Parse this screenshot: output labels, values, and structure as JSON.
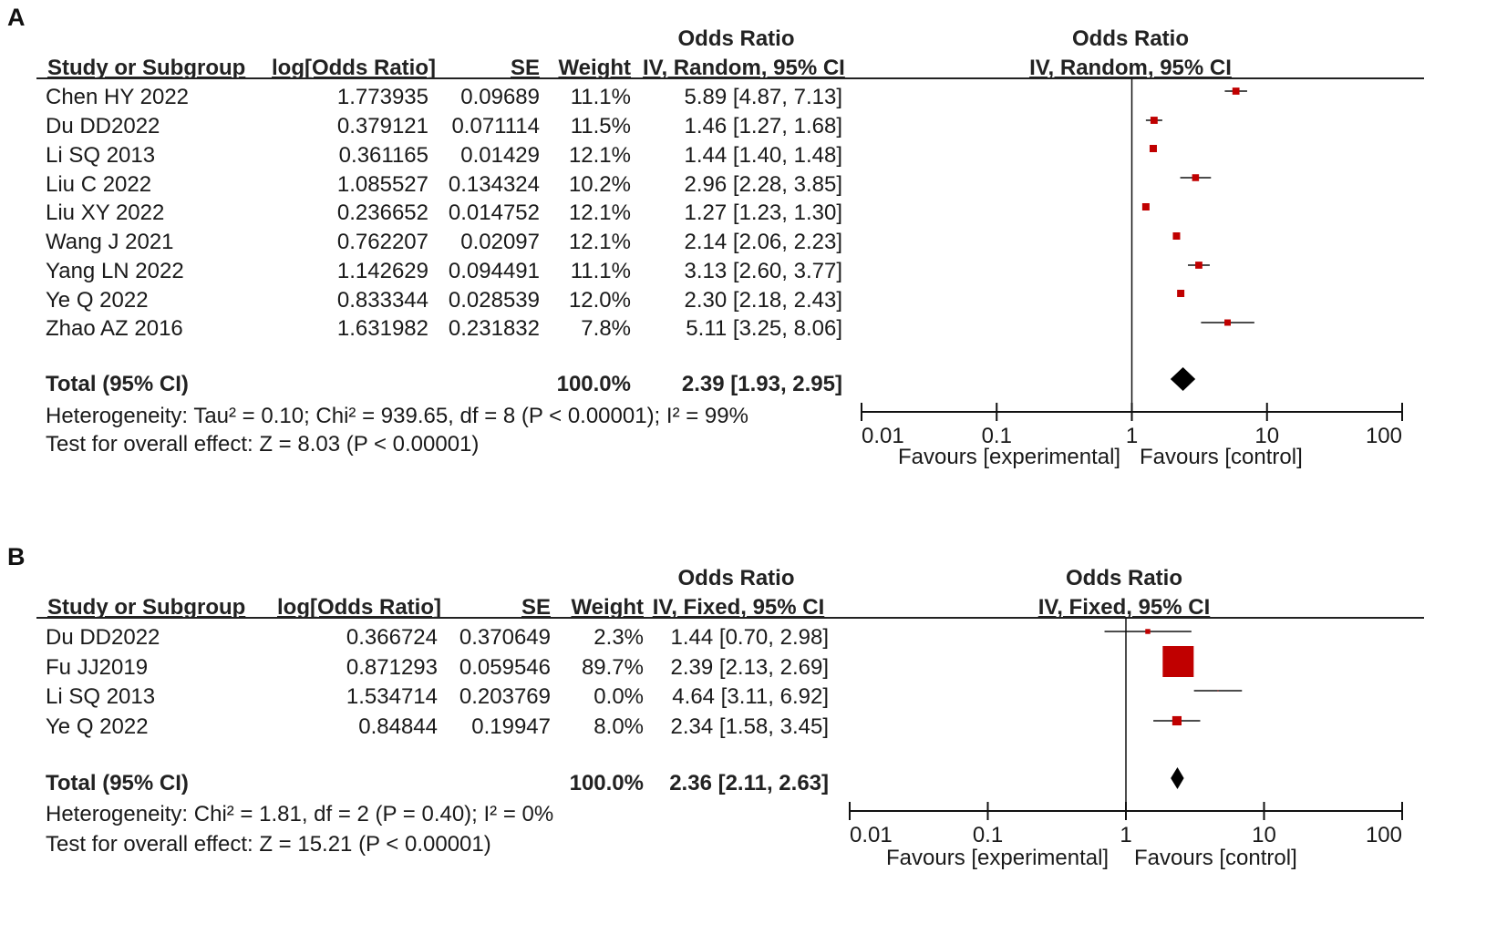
{
  "chart_data": [
    {
      "panel": "A",
      "type": "forest",
      "columns": {
        "study": "Study or Subgroup",
        "log_or": "log[Odds Ratio]",
        "se": "SE",
        "weight": "Weight",
        "or_title": "Odds Ratio",
        "or_method": "IV, Random, 95% CI"
      },
      "plot_title": "Odds Ratio",
      "plot_method": "IV, Random, 95% CI",
      "studies": [
        {
          "name": "Chen HY 2022",
          "log_or": "1.773935",
          "se": "0.09689",
          "weight": "11.1%",
          "ci_text": "5.89 [4.87, 7.13]",
          "or": 5.89,
          "lo": 4.87,
          "hi": 7.13,
          "w": 11.1
        },
        {
          "name": "Du DD2022",
          "log_or": "0.379121",
          "se": "0.071114",
          "weight": "11.5%",
          "ci_text": "1.46 [1.27, 1.68]",
          "or": 1.46,
          "lo": 1.27,
          "hi": 1.68,
          "w": 11.5
        },
        {
          "name": "Li SQ 2013",
          "log_or": "0.361165",
          "se": "0.01429",
          "weight": "12.1%",
          "ci_text": "1.44 [1.40, 1.48]",
          "or": 1.44,
          "lo": 1.4,
          "hi": 1.48,
          "w": 12.1
        },
        {
          "name": "Liu C 2022",
          "log_or": "1.085527",
          "se": "0.134324",
          "weight": "10.2%",
          "ci_text": "2.96 [2.28, 3.85]",
          "or": 2.96,
          "lo": 2.28,
          "hi": 3.85,
          "w": 10.2
        },
        {
          "name": "Liu XY 2022",
          "log_or": "0.236652",
          "se": "0.014752",
          "weight": "12.1%",
          "ci_text": "1.27 [1.23, 1.30]",
          "or": 1.27,
          "lo": 1.23,
          "hi": 1.3,
          "w": 12.1
        },
        {
          "name": "Wang J 2021",
          "log_or": "0.762207",
          "se": "0.02097",
          "weight": "12.1%",
          "ci_text": "2.14 [2.06, 2.23]",
          "or": 2.14,
          "lo": 2.06,
          "hi": 2.23,
          "w": 12.1
        },
        {
          "name": "Yang LN 2022",
          "log_or": "1.142629",
          "se": "0.094491",
          "weight": "11.1%",
          "ci_text": "3.13 [2.60, 3.77]",
          "or": 3.13,
          "lo": 2.6,
          "hi": 3.77,
          "w": 11.1
        },
        {
          "name": "Ye Q 2022",
          "log_or": "0.833344",
          "se": "0.028539",
          "weight": "12.0%",
          "ci_text": "2.30 [2.18, 2.43]",
          "or": 2.3,
          "lo": 2.18,
          "hi": 2.43,
          "w": 12.0
        },
        {
          "name": "Zhao AZ 2016",
          "log_or": "1.631982",
          "se": "0.231832",
          "weight": "7.8%",
          "ci_text": "5.11 [3.25, 8.06]",
          "or": 5.11,
          "lo": 3.25,
          "hi": 8.06,
          "w": 7.8
        }
      ],
      "total": {
        "label": "Total (95% CI)",
        "weight": "100.0%",
        "ci_text": "2.39 [1.93, 2.95]",
        "or": 2.39,
        "lo": 1.93,
        "hi": 2.95
      },
      "heterogeneity": "Heterogeneity: Tau² = 0.10; Chi² = 939.65, df = 8 (P < 0.00001); I² = 99%",
      "overall_effect": "Test for overall effect: Z = 8.03 (P < 0.00001)",
      "axis": {
        "scale": "log",
        "ticks": [
          0.01,
          0.1,
          1,
          10,
          100
        ],
        "tick_labels": [
          "0.01",
          "0.1",
          "1",
          "10",
          "100"
        ],
        "xlim": [
          0.01,
          100
        ]
      },
      "favours_left": "Favours [experimental]",
      "favours_right": "Favours [control]"
    },
    {
      "panel": "B",
      "type": "forest",
      "columns": {
        "study": "Study or Subgroup",
        "log_or": "log[Odds Ratio]",
        "se": "SE",
        "weight": "Weight",
        "or_title": "Odds Ratio",
        "or_method": "IV, Fixed, 95% CI"
      },
      "plot_title": "Odds Ratio",
      "plot_method": "IV, Fixed, 95% CI",
      "studies": [
        {
          "name": "Du DD2022",
          "log_or": "0.366724",
          "se": "0.370649",
          "weight": "2.3%",
          "ci_text": "1.44 [0.70, 2.98]",
          "or": 1.44,
          "lo": 0.7,
          "hi": 2.98,
          "w": 2.3
        },
        {
          "name": "Fu JJ2019",
          "log_or": "0.871293",
          "se": "0.059546",
          "weight": "89.7%",
          "ci_text": "2.39 [2.13, 2.69]",
          "or": 2.39,
          "lo": 2.13,
          "hi": 2.69,
          "w": 89.7
        },
        {
          "name": "Li SQ 2013",
          "log_or": "1.534714",
          "se": "0.203769",
          "weight": "0.0%",
          "ci_text": "4.64 [3.11, 6.92]",
          "or": 4.64,
          "lo": 3.11,
          "hi": 6.92,
          "w": 0.0
        },
        {
          "name": "Ye Q 2022",
          "log_or": "0.84844",
          "se": "0.19947",
          "weight": "8.0%",
          "ci_text": "2.34 [1.58, 3.45]",
          "or": 2.34,
          "lo": 1.58,
          "hi": 3.45,
          "w": 8.0
        }
      ],
      "total": {
        "label": "Total (95% CI)",
        "weight": "100.0%",
        "ci_text": "2.36 [2.11, 2.63]",
        "or": 2.36,
        "lo": 2.11,
        "hi": 2.63
      },
      "heterogeneity": "Heterogeneity: Chi² = 1.81, df = 2 (P = 0.40); I² = 0%",
      "overall_effect": "Test for overall effect: Z = 15.21 (P < 0.00001)",
      "axis": {
        "scale": "log",
        "ticks": [
          0.01,
          0.1,
          1,
          10,
          100
        ],
        "tick_labels": [
          "0.01",
          "0.1",
          "1",
          "10",
          "100"
        ],
        "xlim": [
          0.01,
          100
        ]
      },
      "favours_left": "Favours [experimental]",
      "favours_right": "Favours [control]"
    }
  ],
  "colors": {
    "marker": "#c00000",
    "ink": "#111111",
    "diamond": "#000000"
  }
}
